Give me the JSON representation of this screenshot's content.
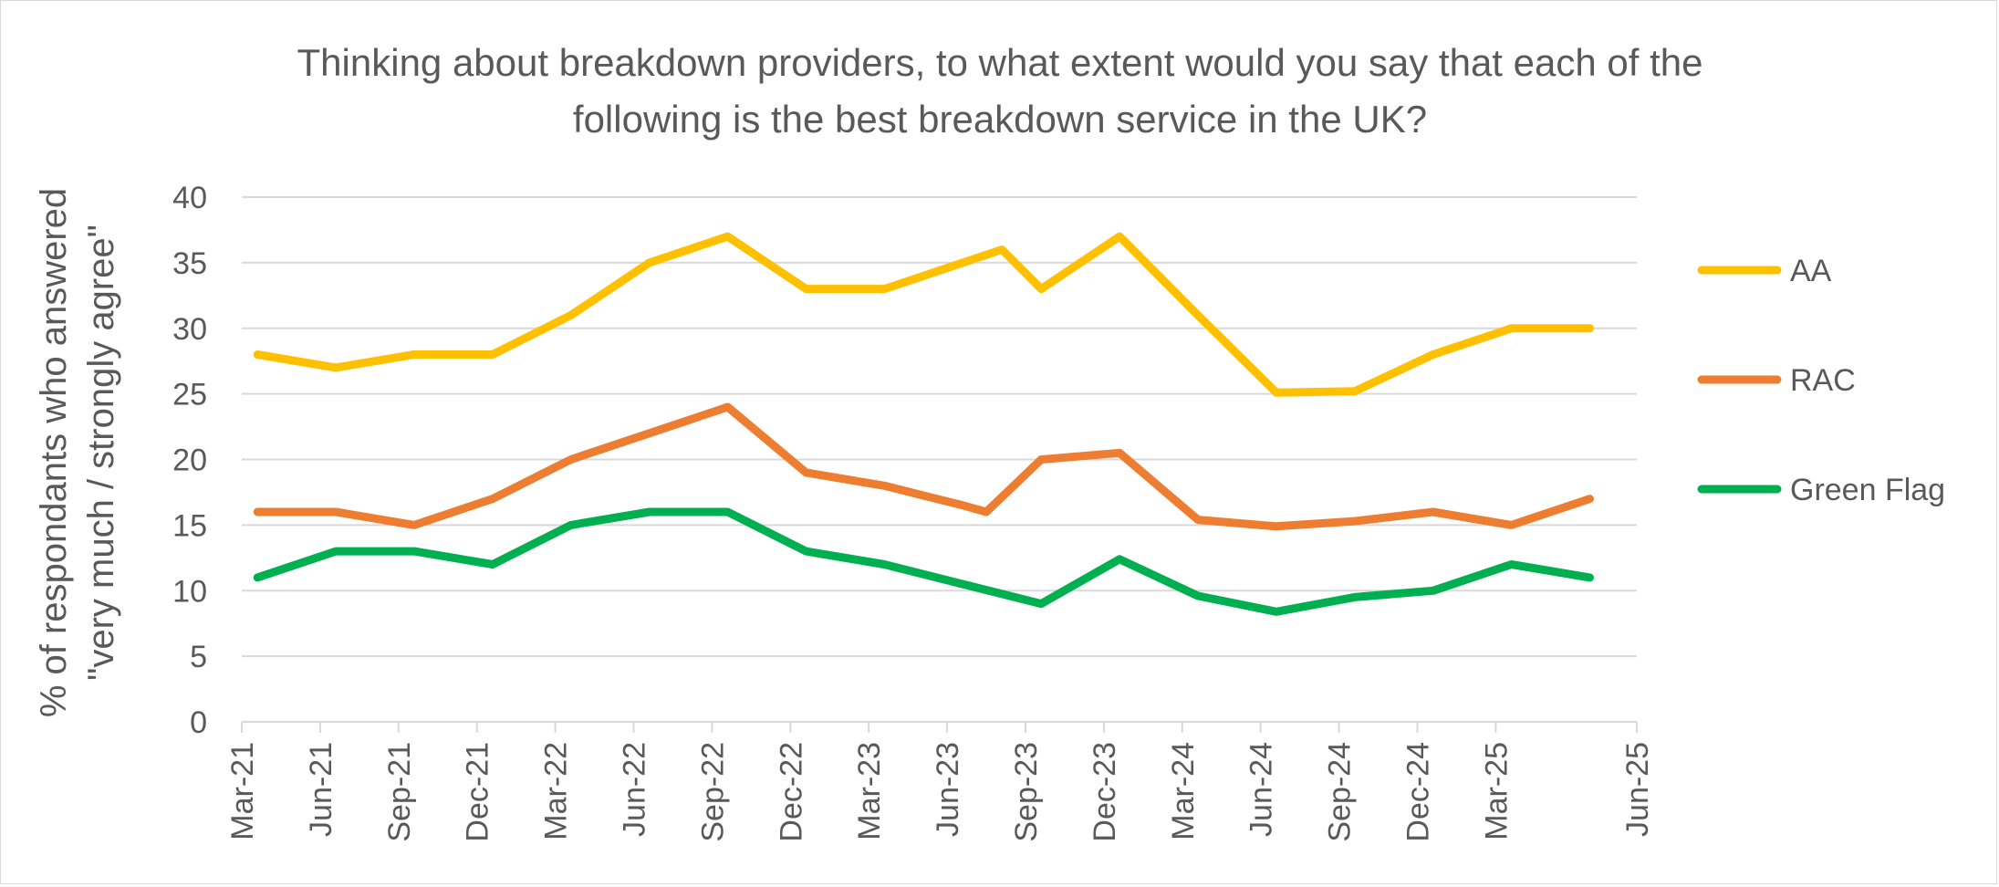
{
  "chart_data": {
    "type": "line",
    "title_lines": [
      "Thinking about breakdown providers, to what extent would you say that each of the",
      "following is the best breakdown service in the UK?"
    ],
    "ylabel_lines": [
      "% of respondants who answered",
      "\"very much / strongly agree\""
    ],
    "xlabel": "",
    "ylim": [
      0,
      40
    ],
    "yticks": [
      0,
      5,
      10,
      15,
      20,
      25,
      30,
      35,
      40
    ],
    "grid": true,
    "legend_position": "right",
    "x_range": [
      0,
      17.8
    ],
    "tick_labels": [
      "Mar-21",
      "Jun-21",
      "Sep-21",
      "Dec-21",
      "Mar-22",
      "Jun-22",
      "Sep-22",
      "Dec-22",
      "Mar-23",
      "Jun-23",
      "Sep-23",
      "Dec-23",
      "Mar-24",
      "Jun-24",
      "Sep-24",
      "Dec-24",
      "Mar-25",
      "Jun-25"
    ],
    "tick_x": [
      0,
      1,
      2,
      3,
      4,
      5,
      6,
      7,
      8,
      9,
      10,
      11,
      12,
      13,
      14,
      15,
      16,
      17.8
    ],
    "series": [
      {
        "name": "AA",
        "color": "#FFC000",
        "points": [
          [
            0.2,
            28
          ],
          [
            1.2,
            27
          ],
          [
            2.2,
            28
          ],
          [
            3.2,
            28
          ],
          [
            4.2,
            31
          ],
          [
            5.2,
            35
          ],
          [
            6.2,
            37
          ],
          [
            7.2,
            33
          ],
          [
            8.2,
            33
          ],
          [
            9.2,
            35
          ],
          [
            9.7,
            36
          ],
          [
            10.2,
            33
          ],
          [
            11.2,
            37
          ],
          [
            12.2,
            31
          ],
          [
            13.2,
            25.1
          ],
          [
            14.2,
            25.2
          ],
          [
            15.2,
            28
          ],
          [
            16.2,
            30
          ],
          [
            17.2,
            30
          ]
        ]
      },
      {
        "name": "RAC",
        "color": "#ED7D31",
        "points": [
          [
            0.2,
            16
          ],
          [
            1.2,
            16
          ],
          [
            2.2,
            15
          ],
          [
            3.2,
            17
          ],
          [
            4.2,
            20
          ],
          [
            5.2,
            22
          ],
          [
            6.2,
            24
          ],
          [
            7.2,
            19
          ],
          [
            8.2,
            18
          ],
          [
            9.2,
            16.5
          ],
          [
            9.5,
            16
          ],
          [
            10.2,
            20
          ],
          [
            11.2,
            20.5
          ],
          [
            12.2,
            15.4
          ],
          [
            13.2,
            14.9
          ],
          [
            14.2,
            15.3
          ],
          [
            15.2,
            16
          ],
          [
            16.2,
            15
          ],
          [
            17.2,
            17
          ]
        ]
      },
      {
        "name": "Green Flag",
        "color": "#00B050",
        "points": [
          [
            0.2,
            11
          ],
          [
            1.2,
            13
          ],
          [
            2.2,
            13
          ],
          [
            3.2,
            12
          ],
          [
            4.2,
            15
          ],
          [
            5.2,
            16
          ],
          [
            6.2,
            16
          ],
          [
            7.2,
            13
          ],
          [
            8.2,
            12
          ],
          [
            9.2,
            10.5
          ],
          [
            10.2,
            9
          ],
          [
            11.2,
            12.4
          ],
          [
            12.2,
            9.6
          ],
          [
            13.2,
            8.4
          ],
          [
            14.2,
            9.5
          ],
          [
            15.2,
            10
          ],
          [
            16.2,
            12
          ],
          [
            17.2,
            11
          ]
        ]
      }
    ]
  }
}
